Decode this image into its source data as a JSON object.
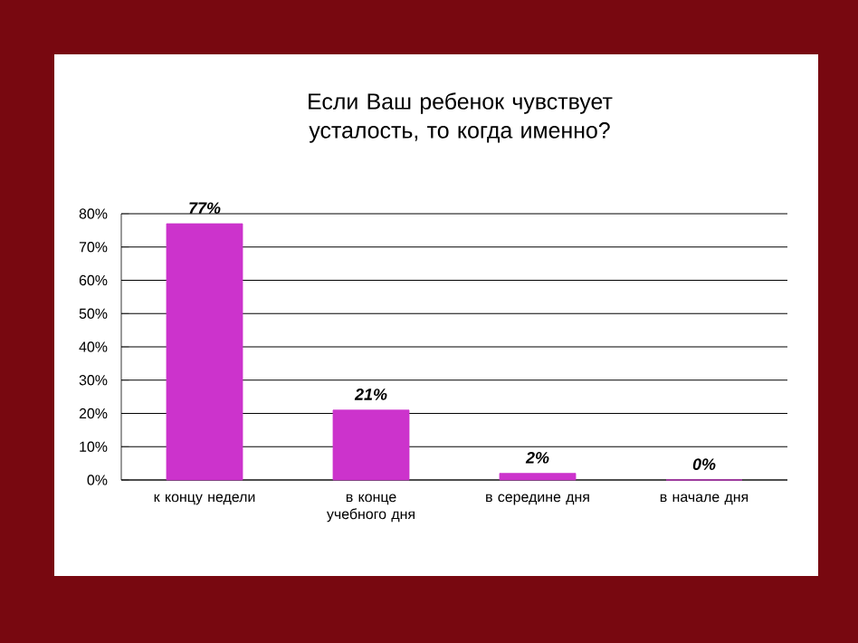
{
  "chart_data": {
    "type": "bar",
    "title": "Если Ваш ребенок чувствует усталость, то когда именно?",
    "categories": [
      "к концу недели",
      "в конце учебного дня",
      "в середине дня",
      "в начале дня"
    ],
    "values": [
      77,
      21,
      2,
      0
    ],
    "value_labels": [
      "77%",
      "21%",
      "2%",
      "0%"
    ],
    "color": "#cc33cc",
    "ylim": [
      0,
      80
    ],
    "yticks": [
      {
        "value": 0,
        "label": "0%"
      },
      {
        "value": 10,
        "label": "10%"
      },
      {
        "value": 20,
        "label": "20%"
      },
      {
        "value": 30,
        "label": "30%"
      },
      {
        "value": 40,
        "label": "40%"
      },
      {
        "value": 50,
        "label": "50%"
      },
      {
        "value": 60,
        "label": "60%"
      },
      {
        "value": 70,
        "label": "70%"
      },
      {
        "value": 80,
        "label": "80%"
      }
    ],
    "grid": "y"
  }
}
